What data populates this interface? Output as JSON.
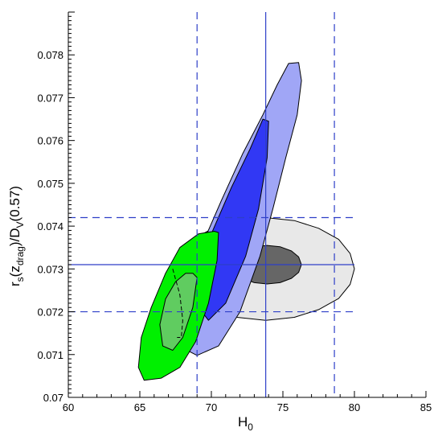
{
  "chart_data": {
    "type": "contour",
    "xlabel": {
      "main": "H",
      "sub": "0"
    },
    "ylabel": {
      "parts": [
        "r",
        "s",
        "(z",
        "drag",
        ")/D",
        "V",
        "(0.57)"
      ]
    },
    "xlim": [
      60,
      85
    ],
    "ylim": [
      0.07,
      0.079
    ],
    "xticks": [
      60,
      65,
      70,
      75,
      80,
      85
    ],
    "xtick_labels": [
      "60",
      "65",
      "70",
      "75",
      "80",
      "85"
    ],
    "yticks": [
      0.07,
      0.071,
      0.072,
      0.073,
      0.074,
      0.075,
      0.076,
      0.077,
      0.078
    ],
    "ytick_labels": [
      "0.07",
      "0.071",
      "0.072",
      "0.073",
      "0.074",
      "0.075",
      "0.076",
      "0.077",
      "0.078"
    ],
    "grid": false,
    "reference_lines": {
      "vertical_solid": 73.8,
      "vertical_dashed": [
        69.0,
        78.6
      ],
      "horizontal_solid": 0.0731,
      "horizontal_dashed": [
        0.072,
        0.0742
      ]
    },
    "contours": [
      {
        "name": "grey-outer",
        "fill": "#e8e8e8",
        "points": [
          [
            80.0,
            0.073
          ],
          [
            79.7,
            0.07336
          ],
          [
            78.9,
            0.07369
          ],
          [
            77.5,
            0.07395
          ],
          [
            75.8,
            0.07413
          ],
          [
            73.8,
            0.0742
          ],
          [
            71.8,
            0.07413
          ],
          [
            70.1,
            0.07395
          ],
          [
            68.7,
            0.07369
          ],
          [
            67.9,
            0.07336
          ],
          [
            67.6,
            0.073
          ],
          [
            67.9,
            0.07264
          ],
          [
            68.7,
            0.07231
          ],
          [
            70.1,
            0.07205
          ],
          [
            71.8,
            0.07187
          ],
          [
            73.8,
            0.0718
          ],
          [
            75.8,
            0.07187
          ],
          [
            77.5,
            0.07205
          ],
          [
            78.9,
            0.07231
          ],
          [
            79.7,
            0.07264
          ]
        ]
      },
      {
        "name": "grey-inner",
        "fill": "#666666",
        "points": [
          [
            76.3,
            0.0731
          ],
          [
            76.1,
            0.07328
          ],
          [
            75.6,
            0.07342
          ],
          [
            74.8,
            0.07352
          ],
          [
            73.9,
            0.07355
          ],
          [
            73.0,
            0.07352
          ],
          [
            72.2,
            0.07342
          ],
          [
            71.7,
            0.07328
          ],
          [
            71.5,
            0.0731
          ],
          [
            71.7,
            0.07292
          ],
          [
            72.2,
            0.07278
          ],
          [
            73.0,
            0.07268
          ],
          [
            73.9,
            0.07265
          ],
          [
            74.8,
            0.07268
          ],
          [
            75.6,
            0.07278
          ],
          [
            76.1,
            0.07292
          ]
        ]
      },
      {
        "name": "blue-outer",
        "fill": "#a0a6f6",
        "points": [
          [
            75.4,
            0.0778
          ],
          [
            76.1,
            0.07782
          ],
          [
            76.3,
            0.0774
          ],
          [
            76.0,
            0.0766
          ],
          [
            75.2,
            0.0756
          ],
          [
            74.3,
            0.0744
          ],
          [
            73.4,
            0.0733
          ],
          [
            72.0,
            0.072
          ],
          [
            70.5,
            0.0712
          ],
          [
            69.0,
            0.07098
          ],
          [
            67.7,
            0.0712
          ],
          [
            67.6,
            0.0717
          ],
          [
            68.3,
            0.0725
          ],
          [
            69.4,
            0.0736
          ],
          [
            70.7,
            0.0746
          ],
          [
            72.2,
            0.0757
          ],
          [
            73.6,
            0.0766
          ],
          [
            74.6,
            0.0773
          ]
        ]
      },
      {
        "name": "blue-inner",
        "fill": "#3138f4",
        "points": [
          [
            73.6,
            0.0765
          ],
          [
            74.0,
            0.07645
          ],
          [
            73.9,
            0.0756
          ],
          [
            73.3,
            0.0744
          ],
          [
            72.4,
            0.0733
          ],
          [
            71.0,
            0.0722
          ],
          [
            69.8,
            0.0718
          ],
          [
            69.1,
            0.0721
          ],
          [
            69.2,
            0.0729
          ],
          [
            70.1,
            0.0739
          ],
          [
            71.4,
            0.0749
          ],
          [
            72.7,
            0.0758
          ]
        ]
      },
      {
        "name": "green-outer",
        "fill": "#00f000",
        "points": [
          [
            70.2,
            0.07388
          ],
          [
            70.5,
            0.07385
          ],
          [
            70.4,
            0.0732
          ],
          [
            69.8,
            0.0722
          ],
          [
            68.9,
            0.0713
          ],
          [
            67.8,
            0.0707
          ],
          [
            66.5,
            0.07045
          ],
          [
            65.3,
            0.0704
          ],
          [
            64.9,
            0.0707
          ],
          [
            65.1,
            0.0714
          ],
          [
            65.8,
            0.0721
          ],
          [
            66.8,
            0.0729
          ],
          [
            67.8,
            0.0735
          ],
          [
            69.1,
            0.07382
          ]
        ]
      },
      {
        "name": "green-inner",
        "fill": "#60cc60",
        "points": [
          [
            68.7,
            0.0729
          ],
          [
            69.0,
            0.0728
          ],
          [
            68.7,
            0.0721
          ],
          [
            68.0,
            0.0714
          ],
          [
            67.3,
            0.0711
          ],
          [
            66.6,
            0.0712
          ],
          [
            66.4,
            0.0717
          ],
          [
            66.8,
            0.0723
          ],
          [
            67.5,
            0.0727
          ],
          [
            68.2,
            0.0729
          ]
        ]
      }
    ],
    "inner_dashed_contour": [
      [
        67.3,
        0.073
      ],
      [
        67.8,
        0.0724
      ],
      [
        68.0,
        0.0718
      ],
      [
        67.9,
        0.0714
      ],
      [
        67.6,
        0.0714
      ]
    ],
    "colors": {
      "axis": "#000000",
      "reference_line": "#2e3fc8",
      "contour_edge": "#000000"
    }
  }
}
